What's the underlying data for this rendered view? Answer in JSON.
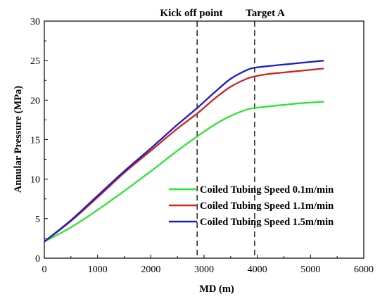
{
  "chart_data": {
    "type": "line",
    "title": "",
    "xlabel": "MD (m)",
    "ylabel": "Annular Pressure (MPa)",
    "xlim": [
      0,
      6000
    ],
    "ylim": [
      0,
      30
    ],
    "xticks": [
      0,
      1000,
      2000,
      3000,
      4000,
      5000,
      6000
    ],
    "yticks": [
      0,
      5,
      10,
      15,
      20,
      25,
      30
    ],
    "xtick_labels": [
      "0",
      "1000",
      "2000",
      "3000",
      "4000",
      "5000",
      "6000"
    ],
    "ytick_labels": [
      "0",
      "5",
      "10",
      "15",
      "20",
      "25",
      "30"
    ],
    "grid": false,
    "legend_position": "lower-right",
    "annotations": [
      {
        "label": "Kick off point",
        "x": 2870
      },
      {
        "label": "Target A",
        "x": 3950
      }
    ],
    "series": [
      {
        "name": "Coiled Tubing Speed 0.1m/min",
        "color": "#2ee52e",
        "x": [
          0,
          500,
          1000,
          1500,
          2000,
          2500,
          2870,
          3200,
          3500,
          3800,
          3950,
          4200,
          4500,
          4800,
          5250
        ],
        "y": [
          2.1,
          3.9,
          6.1,
          8.5,
          11.0,
          13.6,
          15.4,
          16.9,
          18.0,
          18.8,
          19.0,
          19.2,
          19.4,
          19.6,
          19.8
        ]
      },
      {
        "name": "Coiled Tubing Speed 1.1m/min",
        "color": "#d0221f",
        "x": [
          0,
          500,
          1000,
          1500,
          2000,
          2500,
          2870,
          3200,
          3500,
          3800,
          3950,
          4200,
          4500,
          4800,
          5250
        ],
        "y": [
          2.1,
          4.7,
          7.7,
          10.8,
          13.6,
          16.4,
          18.3,
          20.2,
          21.7,
          22.7,
          23.0,
          23.3,
          23.5,
          23.7,
          24.0
        ]
      },
      {
        "name": "Coiled Tubing Speed 1.5m/min",
        "color": "#1c1cc8",
        "x": [
          0,
          500,
          1000,
          1500,
          2000,
          2500,
          2870,
          3200,
          3500,
          3800,
          3950,
          4200,
          4500,
          4800,
          5250
        ],
        "y": [
          2.1,
          4.8,
          7.9,
          11.0,
          13.9,
          16.9,
          19.0,
          21.0,
          22.7,
          23.8,
          24.1,
          24.3,
          24.5,
          24.7,
          25.0
        ]
      }
    ]
  }
}
